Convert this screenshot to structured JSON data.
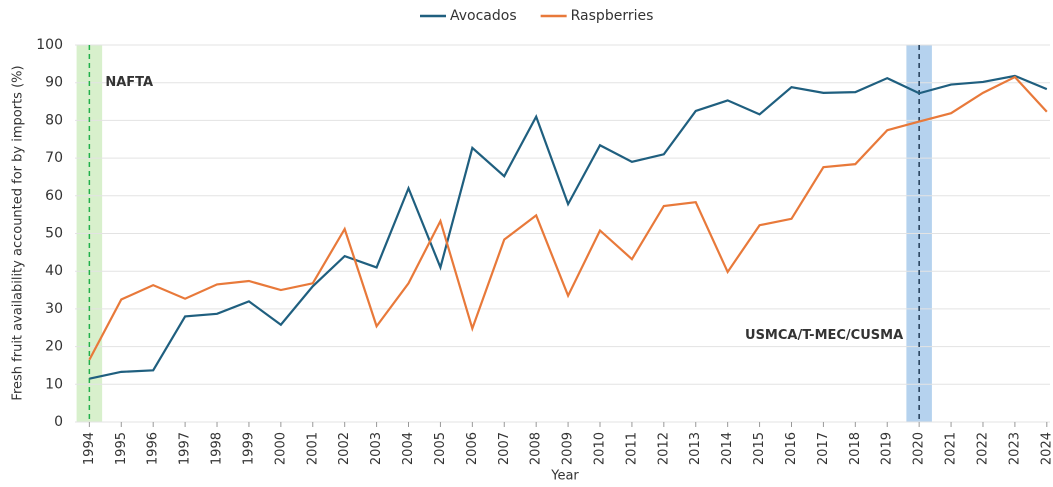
{
  "chart_data": {
    "type": "line",
    "x_label": "Year",
    "y_label": "Fresh fruit availability accounted for by imports (%)",
    "x": [
      1994,
      1995,
      1996,
      1997,
      1998,
      1999,
      2000,
      2001,
      2002,
      2003,
      2004,
      2005,
      2006,
      2007,
      2008,
      2009,
      2010,
      2011,
      2012,
      2013,
      2014,
      2015,
      2016,
      2017,
      2018,
      2019,
      2020,
      2021,
      2022,
      2023,
      2024
    ],
    "series": [
      {
        "name": "Avocados",
        "color": "#1f5f7f",
        "values": [
          11.5,
          13.3,
          13.7,
          28,
          28.7,
          32,
          25.8,
          36,
          44,
          41,
          62,
          41,
          72.7,
          65.2,
          81,
          57.8,
          73.4,
          69,
          71,
          82.5,
          85.3,
          81.6,
          88.8,
          87.3,
          87.5,
          91.2,
          87.2,
          89.5,
          90.2,
          91.8,
          88.3
        ]
      },
      {
        "name": "Raspberries",
        "color": "#e8793a",
        "values": [
          16.5,
          32.5,
          36.3,
          32.7,
          36.5,
          37.4,
          35,
          36.8,
          51.2,
          25.4,
          36.8,
          53.3,
          24.8,
          48.4,
          54.8,
          33.5,
          50.8,
          43.2,
          57.3,
          58.3,
          39.8,
          52.2,
          53.9,
          67.6,
          68.4,
          77.4,
          79.7,
          81.9,
          87.3,
          91.5,
          82.3
        ]
      }
    ],
    "xlim": [
      1993.55,
      2024.1
    ],
    "xticks": [
      1994,
      1995,
      1996,
      1997,
      1998,
      1999,
      2000,
      2001,
      2002,
      2003,
      2004,
      2005,
      2006,
      2007,
      2008,
      2009,
      2010,
      2011,
      2012,
      2013,
      2014,
      2015,
      2016,
      2017,
      2018,
      2019,
      2020,
      2021,
      2022,
      2023,
      2024
    ],
    "ylim": [
      0,
      100
    ],
    "yticks": [
      0,
      10,
      20,
      30,
      40,
      50,
      60,
      70,
      80,
      90,
      100
    ],
    "grid": true,
    "legend": "top",
    "annotations": [
      {
        "text": "NAFTA",
        "x": 1994,
        "color": "#22b04b",
        "band_color": "#d8f0cc",
        "line_color": "#22b04b",
        "label_y": 90
      },
      {
        "text": "USMCA/T-MEC/CUSMA",
        "x": 2020,
        "color": "#3fa0d8",
        "band_color": "#b5d2ee",
        "line_color": "#1f3a55",
        "label_y": 23
      }
    ]
  }
}
